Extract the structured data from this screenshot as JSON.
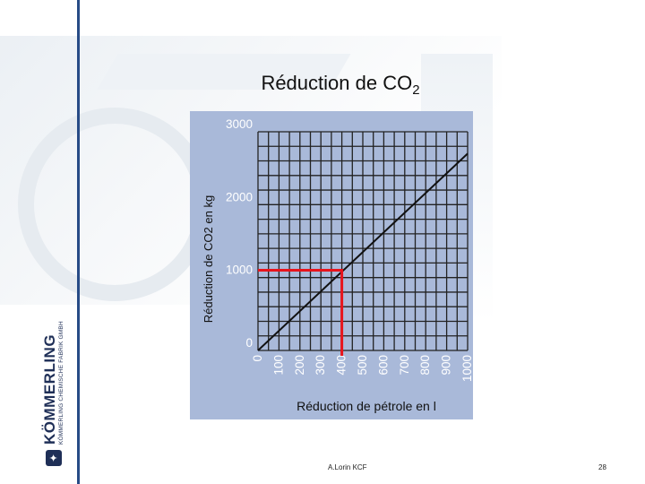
{
  "slide": {
    "title_main": "Réduction de CO",
    "title_sub": "2",
    "author": "A.Lorin KCF",
    "page_number": "28"
  },
  "branding": {
    "logo_name": "KÖMMERLING",
    "logo_subtitle": "KÖMMERLING CHEMISCHE FABRIK GMBH"
  },
  "colors": {
    "chart_background": "#a9b9d9",
    "grid": "#222222",
    "line": "#111111",
    "highlight": "#e8141c",
    "tick_label": "#ffffff",
    "rule": "#274b86"
  },
  "chart_data": {
    "type": "line",
    "xlabel": "Réduction de pétrole en l",
    "ylabel": "Réduction de CO2 en kg",
    "xlim": [
      0,
      1000
    ],
    "ylim": [
      0,
      3000
    ],
    "x_ticks": [
      0,
      100,
      200,
      300,
      400,
      500,
      600,
      700,
      800,
      900,
      1000
    ],
    "y_ticks": [
      0,
      1000,
      2000,
      3000
    ],
    "grid": true,
    "series": [
      {
        "x": [
          0,
          1000
        ],
        "y": [
          0,
          2700
        ]
      }
    ],
    "highlight": {
      "x": 400,
      "y": 1100
    }
  }
}
